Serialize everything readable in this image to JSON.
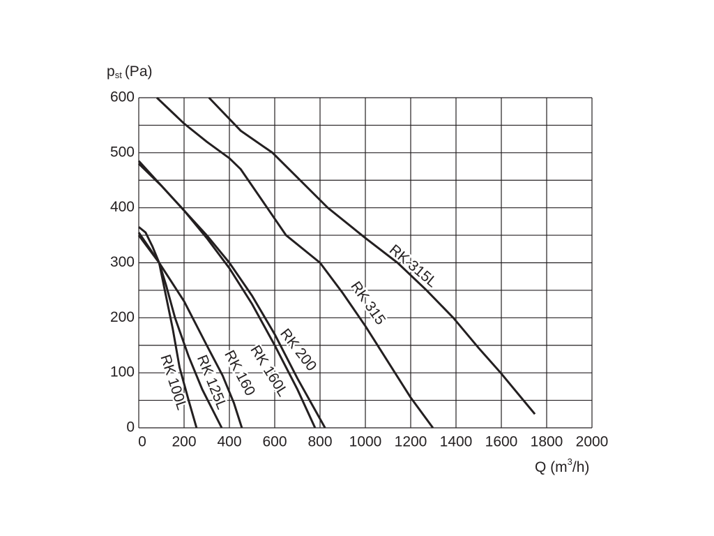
{
  "chart_data": {
    "type": "line",
    "ylabel": {
      "base": "p",
      "sub": "st",
      "unit": "(Pa)"
    },
    "xlabel": {
      "base": "Q (m",
      "sup": "3",
      "unit": "/h)"
    },
    "xlim": [
      0,
      2000
    ],
    "ylim": [
      0,
      600
    ],
    "xticks": [
      0,
      200,
      400,
      600,
      800,
      1000,
      1200,
      1400,
      1600,
      1800,
      2000
    ],
    "yticks": [
      0,
      {
        "value": 50,
        "label": null
      },
      100,
      {
        "value": 150,
        "label": null
      },
      200,
      {
        "value": 250,
        "label": null
      },
      300,
      {
        "value": 350,
        "label": null
      },
      400,
      {
        "value": 450,
        "label": null
      },
      500,
      {
        "value": 550,
        "label": null
      },
      600
    ],
    "grid": true,
    "series": [
      {
        "name": "RK 100L",
        "color": "#231f20",
        "x": [
          0,
          30,
          60,
          90,
          120,
          150,
          180,
          220,
          255
        ],
        "values": [
          365,
          355,
          330,
          300,
          240,
          180,
          110,
          50,
          0
        ]
      },
      {
        "name": "RK 125L",
        "color": "#231f20",
        "x": [
          0,
          50,
          90,
          120,
          160,
          220,
          280,
          366
        ],
        "values": [
          355,
          325,
          300,
          260,
          200,
          130,
          70,
          0
        ]
      },
      {
        "name": "RK 160",
        "color": "#231f20",
        "x": [
          0,
          90,
          200,
          300,
          370,
          420,
          455
        ],
        "values": [
          350,
          300,
          230,
          150,
          95,
          45,
          0
        ]
      },
      {
        "name": "RK 160L",
        "color": "#231f20",
        "x": [
          0,
          100,
          200,
          300,
          400,
          500,
          600,
          700,
          778
        ],
        "values": [
          485,
          440,
          395,
          345,
          290,
          225,
          150,
          70,
          0
        ]
      },
      {
        "name": "RK 200",
        "color": "#231f20",
        "x": [
          0,
          100,
          200,
          300,
          400,
          500,
          600,
          700,
          822
        ],
        "values": [
          480,
          440,
          395,
          350,
          300,
          240,
          170,
          90,
          0
        ]
      },
      {
        "name": "RK 315",
        "color": "#231f20",
        "x": [
          80,
          200,
          300,
          400,
          450,
          550,
          650,
          800,
          900,
          1000,
          1100,
          1200,
          1298
        ],
        "values": [
          600,
          553,
          520,
          490,
          470,
          410,
          350,
          300,
          245,
          185,
          120,
          55,
          0
        ]
      },
      {
        "name": "RK 315L",
        "color": "#231f20",
        "x": [
          310,
          450,
          590,
          700,
          834,
          1000,
          1142,
          1270,
          1388,
          1500,
          1597,
          1748
        ],
        "values": [
          600,
          540,
          500,
          455,
          400,
          345,
          300,
          250,
          200,
          145,
          100,
          25
        ]
      }
    ]
  }
}
